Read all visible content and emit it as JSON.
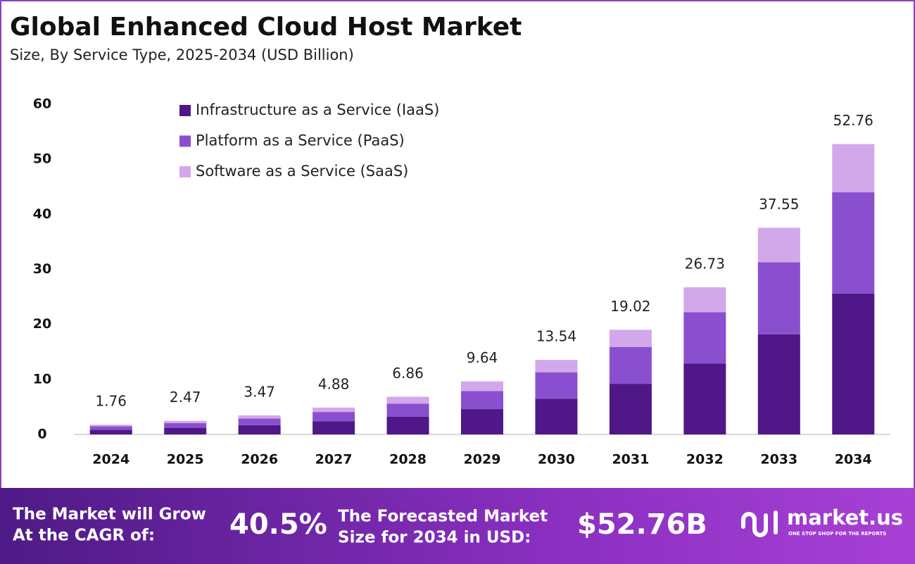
{
  "chart_data": {
    "type": "stacked-bar",
    "title": "Global Enhanced Cloud Host Market",
    "subtitle": "Size, By Service Type, 2025-2034 (USD Billion)",
    "categories": [
      "2024",
      "2025",
      "2026",
      "2027",
      "2028",
      "2029",
      "2030",
      "2031",
      "2032",
      "2033",
      "2034"
    ],
    "series": [
      {
        "name": "Infrastructure as a Service (IaaS)",
        "color": "#4f1787",
        "values": [
          0.85,
          1.2,
          1.68,
          2.37,
          3.2,
          4.6,
          6.5,
          9.2,
          12.9,
          18.2,
          25.6
        ]
      },
      {
        "name": "Platform as a Service (PaaS)",
        "color": "#8a4fcf",
        "values": [
          0.62,
          0.86,
          1.21,
          1.71,
          2.4,
          3.3,
          4.8,
          6.7,
          9.3,
          13.1,
          18.4
        ]
      },
      {
        "name": "Software as a Service (SaaS)",
        "color": "#d3a8ea",
        "values": [
          0.29,
          0.41,
          0.58,
          0.8,
          1.26,
          1.74,
          2.24,
          3.12,
          4.53,
          6.25,
          8.76
        ]
      }
    ],
    "totals": [
      1.76,
      2.47,
      3.47,
      4.88,
      6.86,
      9.64,
      13.54,
      19.02,
      26.73,
      37.55,
      52.76
    ],
    "ylim": [
      0,
      60
    ],
    "yticks": [
      0,
      10,
      20,
      30,
      40,
      50,
      60
    ],
    "grid": false,
    "legend": "top-left"
  },
  "footer": {
    "cagr_text": [
      "The Market will Grow",
      "At the CAGR of:"
    ],
    "cagr": "40.5%",
    "forecast_text": [
      "The Forecasted Market",
      "Size for 2034 in USD:"
    ],
    "forecast": "$52.76B",
    "brand": "market.us",
    "tagline": "ONE STOP SHOP FOR THE REPORTS"
  }
}
